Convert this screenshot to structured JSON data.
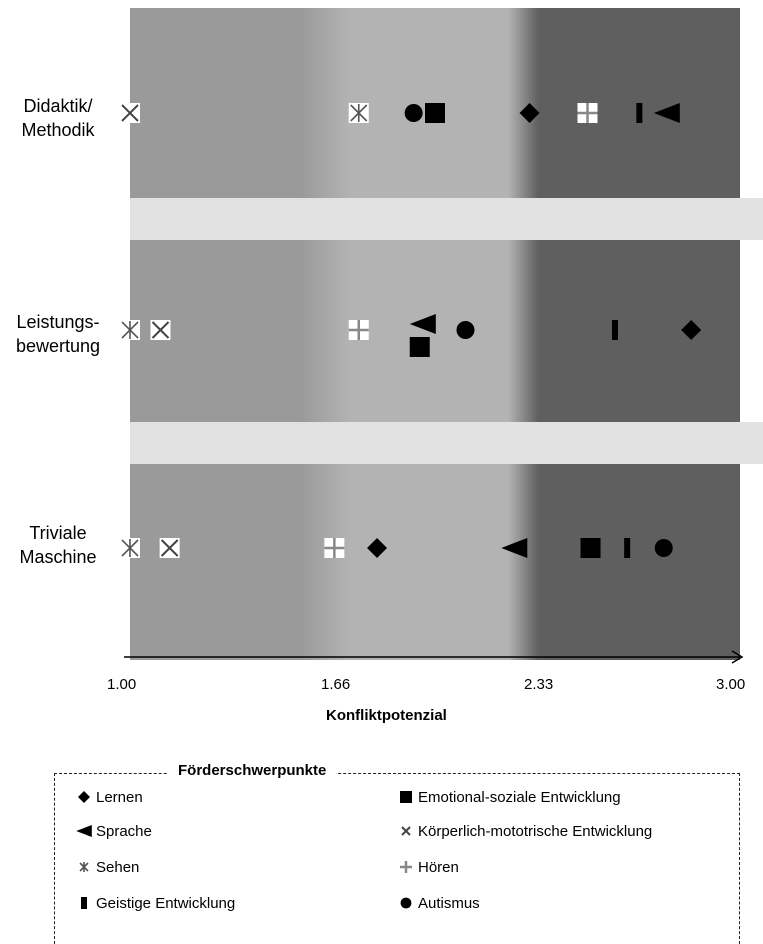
{
  "chart_data": {
    "type": "scatter",
    "xlabel": "Konfliktpotenzial",
    "xlim": [
      1.0,
      3.0
    ],
    "xticks": [
      "1.00",
      "1.66",
      "2.33",
      "3.00"
    ],
    "xtick_values": [
      1.0,
      1.66,
      2.33,
      3.0
    ],
    "rows": [
      {
        "label": "Didaktik/\nMethodik",
        "id": "didaktik"
      },
      {
        "label": "Leistungs-\nbewertung",
        "id": "leistung"
      },
      {
        "label": "Triviale\nMaschine",
        "id": "triviale"
      }
    ],
    "series": [
      {
        "name": "Lernen",
        "marker": "diamond",
        "values": {
          "didaktik": 2.31,
          "leistung": 2.84,
          "triviale": 1.81
        }
      },
      {
        "name": "Emotional-soziale Entwicklung",
        "marker": "square",
        "values": {
          "didaktik": 2.0,
          "leistung": 1.95,
          "triviale": 2.51
        }
      },
      {
        "name": "Sprache",
        "marker": "triangle-left",
        "values": {
          "didaktik": 2.76,
          "leistung": 1.96,
          "triviale": 2.26
        }
      },
      {
        "name": "Körperlich-mototrische Entwicklung",
        "marker": "x-box",
        "values": {
          "didaktik": 1.0,
          "leistung": 1.1,
          "triviale": 1.13
        }
      },
      {
        "name": "Sehen",
        "marker": "asterisk",
        "values": {
          "didaktik": 1.75,
          "leistung": 1.0,
          "triviale": 1.0
        }
      },
      {
        "name": "Hören",
        "marker": "plus-box",
        "values": {
          "didaktik": 2.5,
          "leistung": 1.75,
          "triviale": 1.67
        }
      },
      {
        "name": "Geistige Entwicklung",
        "marker": "bar",
        "values": {
          "didaktik": 2.67,
          "leistung": 2.59,
          "triviale": 2.63
        }
      },
      {
        "name": "Autismus",
        "marker": "circle",
        "values": {
          "didaktik": 1.93,
          "leistung": 2.1,
          "triviale": 2.75
        }
      }
    ],
    "legend_title": "Förderschwerpunkte",
    "legend_position": "bottom",
    "background_bands": [
      {
        "from": 1.0,
        "to": 1.66,
        "color": "#9a9a9a"
      },
      {
        "from": 1.66,
        "to": 2.33,
        "color": "#b3b3b3"
      },
      {
        "from": 2.33,
        "to": 3.0,
        "color": "#5f5f5f"
      }
    ],
    "separator_color": "#e2e2e2"
  }
}
